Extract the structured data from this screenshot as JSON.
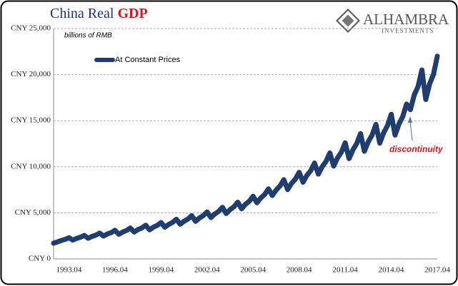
{
  "chart_data": {
    "type": "line",
    "title": "China Real",
    "title_highlight": "GDP",
    "subtitle": "billions of RMB",
    "logo": {
      "name": "ALHAMBRA",
      "sub": "INVESTMENTS"
    },
    "annotation": "discontinuity",
    "categories": [
      null,
      null,
      null,
      null,
      "1993.04",
      null,
      null,
      null,
      null,
      null,
      null,
      null,
      null,
      null,
      null,
      null,
      "1996.04",
      null,
      null,
      null,
      null,
      null,
      null,
      null,
      null,
      null,
      null,
      null,
      "1999.04",
      null,
      null,
      null,
      null,
      null,
      null,
      null,
      null,
      null,
      null,
      null,
      "2002.04",
      null,
      null,
      null,
      null,
      null,
      null,
      null,
      null,
      null,
      null,
      null,
      "2005.04",
      null,
      null,
      null,
      null,
      null,
      null,
      null,
      null,
      null,
      null,
      null,
      "2008.04",
      null,
      null,
      null,
      null,
      null,
      null,
      null,
      null,
      null,
      null,
      null,
      "2011.04",
      null,
      null,
      null,
      null,
      null,
      null,
      null,
      null,
      null,
      null,
      null,
      "2014.04",
      null,
      null,
      null,
      null,
      null,
      null,
      null,
      null,
      null,
      null,
      null,
      "2017.04"
    ],
    "series": [
      {
        "name": "At Constant Prices",
        "color": "#1f3d6e",
        "values": [
          1700,
          1840,
          2000,
          2120,
          2300,
          2040,
          2220,
          2350,
          2550,
          2240,
          2440,
          2580,
          2800,
          2480,
          2700,
          2850,
          3100,
          2680,
          2910,
          3080,
          3350,
          2920,
          3180,
          3360,
          3650,
          3160,
          3440,
          3630,
          3950,
          3440,
          3740,
          3960,
          4300,
          3760,
          4090,
          4320,
          4700,
          4080,
          4440,
          4690,
          5100,
          4480,
          4870,
          5150,
          5600,
          4920,
          5350,
          5660,
          6150,
          5440,
          5920,
          6260,
          6800,
          6080,
          6610,
          6990,
          7600,
          6880,
          7480,
          7910,
          8600,
          7520,
          8180,
          8650,
          9400,
          8320,
          9050,
          9570,
          10400,
          9200,
          10010,
          10580,
          11500,
          10080,
          10960,
          11590,
          12600,
          10880,
          11830,
          12510,
          13600,
          11680,
          12700,
          13430,
          14600,
          12560,
          13660,
          14440,
          15700,
          13440,
          14620,
          15460,
          16800,
          16200,
          17800,
          18700,
          20500,
          17300,
          19000,
          20000,
          22000
        ]
      }
    ],
    "ylim": [
      0,
      25000
    ],
    "yticks": [
      {
        "value": 0,
        "label": "CNY 0"
      },
      {
        "value": 5000,
        "label": "CNY 5,000"
      },
      {
        "value": 10000,
        "label": "CNY 10,000"
      },
      {
        "value": 15000,
        "label": "CNY 15,000"
      },
      {
        "value": 20000,
        "label": "CNY 20,000"
      },
      {
        "value": 25000,
        "label": "CNY 25,000"
      }
    ],
    "grid": true
  }
}
